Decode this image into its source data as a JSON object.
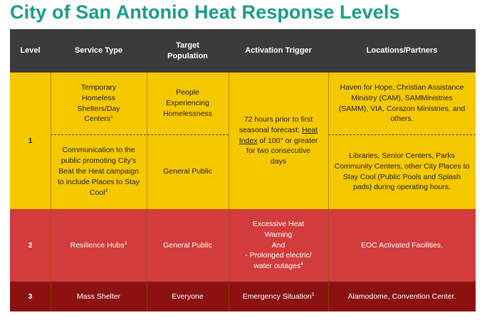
{
  "title": "City of San Antonio Heat Response Levels",
  "headers": {
    "level": "Level",
    "service_type": "Service Type",
    "target_population": "Target Population",
    "activation_trigger": "Activation Trigger",
    "locations": "Locations/Partners"
  },
  "level1": {
    "level": "1",
    "row1": {
      "service": "Temporary Homeless Shelters/Day Centers",
      "service_note": "1",
      "population": "People Experiencing Homelessness",
      "locations": "Haven for Hope, Christian Assistance Ministry (CAM), SAMMinistries (SAMM), VIA, Corazon Ministries, and others."
    },
    "row2": {
      "service": "Communication to the public promoting City’s Beat the Heat campaign to include Places to Stay Cool",
      "service_note": "2",
      "population": "General Public",
      "locations": "Libraries, Senior Centers, Parks Community Centers, other City Places to Stay Cool (Public Pools and Splash pads) during operating hours."
    },
    "trigger_before": "72 hours prior to first seasonal forecast:",
    "trigger_link": "Heat Index",
    "trigger_after": "of 100° or greater for two consecutive days"
  },
  "level2": {
    "level": "2",
    "service": "Resilience Hubs",
    "service_note": "3",
    "population": "General Public",
    "trigger_line1": "Excessive Heat Warning",
    "trigger_line2": "And",
    "trigger_line3": "- Prolonged electric/ water outages",
    "trigger_note": "4",
    "locations": "EOC Activated Facilities."
  },
  "level3": {
    "level": "3",
    "service": "Mass Shelter",
    "population": "Everyone",
    "trigger": "Emergency Situation",
    "trigger_note": "5",
    "locations": "Alamodome, Convention Center."
  },
  "colors": {
    "title": "#1a9d8a",
    "header": "#3b3b3b",
    "level1": "#f5c800",
    "level2": "#d23c3c",
    "level3": "#8c1212"
  }
}
